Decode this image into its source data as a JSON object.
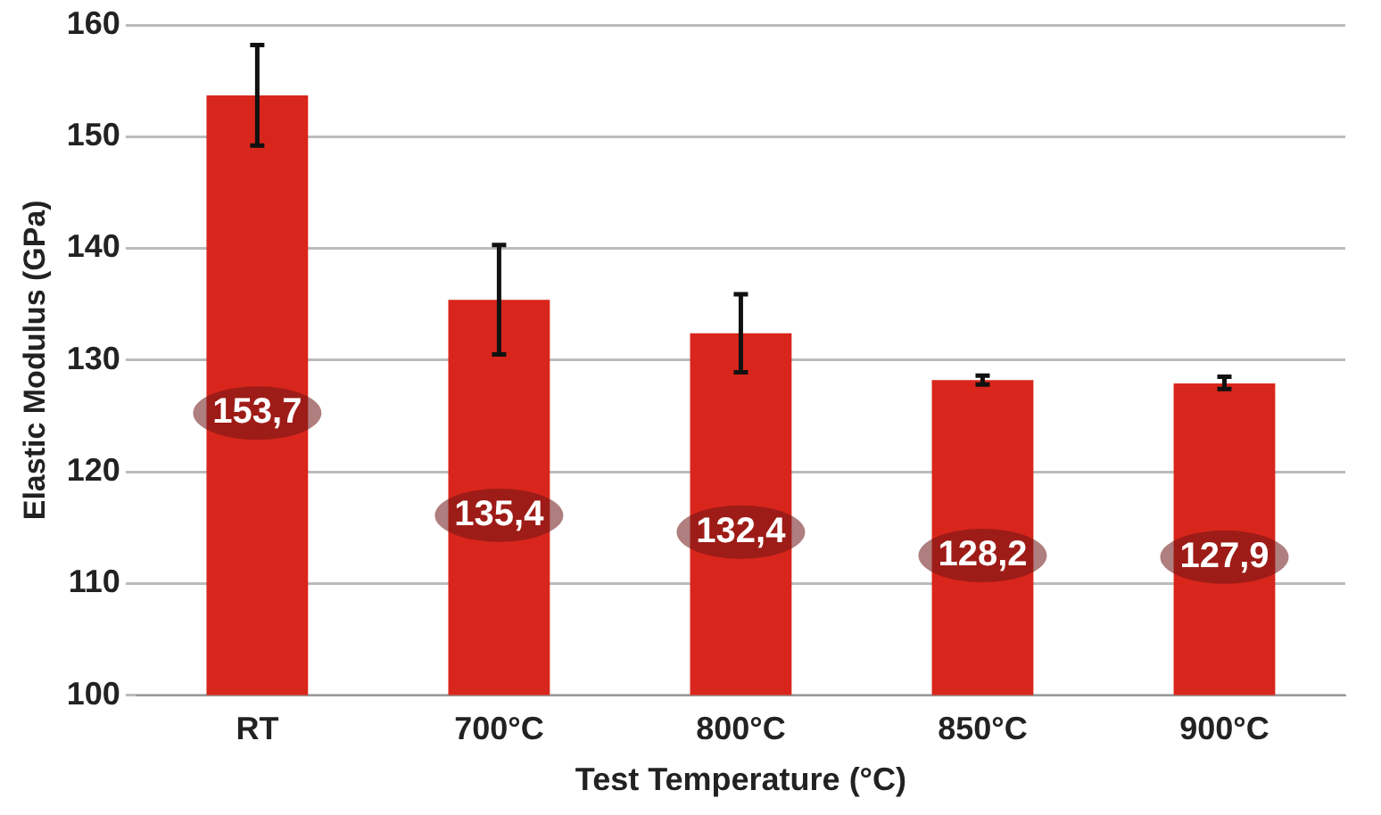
{
  "chart_data": {
    "type": "bar",
    "xlabel": "Test Temperature (°C)",
    "ylabel": "Elastic Modulus (GPa)",
    "categories": [
      "RT",
      "700°C",
      "800°C",
      "850°C",
      "900°C"
    ],
    "values": [
      153.7,
      135.4,
      132.4,
      128.2,
      127.9
    ],
    "value_labels": [
      "153,7",
      "135,4",
      "132,4",
      "128,2",
      "127,9"
    ],
    "errors": [
      [
        149.2,
        158.2
      ],
      [
        130.5,
        140.3
      ],
      [
        128.9,
        135.9
      ],
      [
        127.8,
        128.6
      ],
      [
        127.4,
        128.5
      ]
    ],
    "color": "#d9261c",
    "ylim": [
      100,
      160
    ],
    "yticks": [
      100,
      110,
      120,
      130,
      140,
      150,
      160
    ],
    "grid": "y",
    "legend": false
  }
}
